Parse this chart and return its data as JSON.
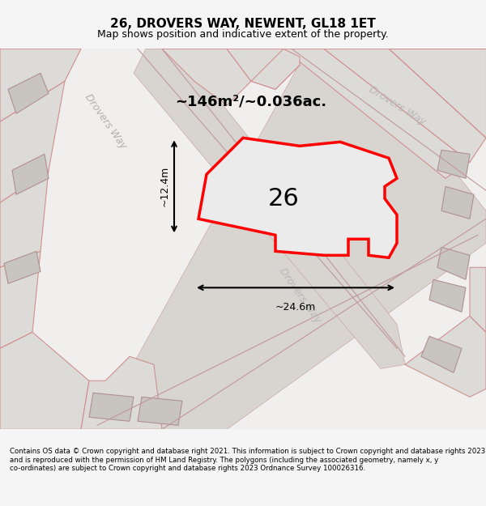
{
  "title": "26, DROVERS WAY, NEWENT, GL18 1ET",
  "subtitle": "Map shows position and indicative extent of the property.",
  "footer": "Contains OS data © Crown copyright and database right 2021. This information is subject to Crown copyright and database rights 2023 and is reproduced with the permission of HM Land Registry. The polygons (including the associated geometry, namely x, y co-ordinates) are subject to Crown copyright and database rights 2023 Ordnance Survey 100026316.",
  "area_label": "~146m²/~0.036ac.",
  "plot_number": "26",
  "dim_width": "~24.6m",
  "dim_height": "~12.4m",
  "bg_color": "#e8e8e8",
  "map_bg": "#f0f0f0",
  "plot_fill": "#e8e8e8",
  "plot_edge": "#ff0000",
  "road_label1": "Drovers Way",
  "road_label2": "Drovers Way",
  "road_label3": "Drovers Way"
}
